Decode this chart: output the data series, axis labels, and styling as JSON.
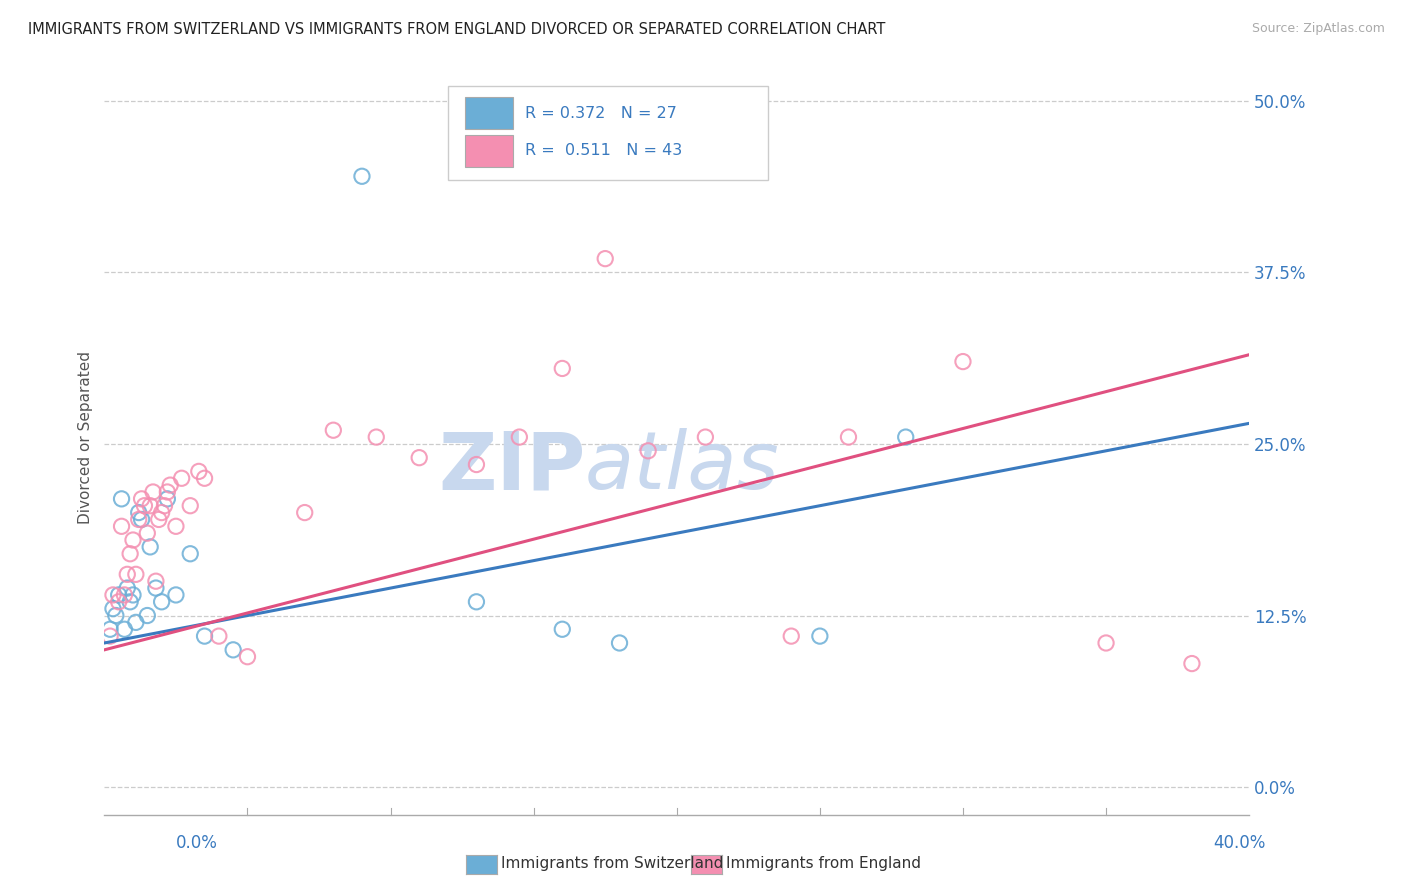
{
  "title": "IMMIGRANTS FROM SWITZERLAND VS IMMIGRANTS FROM ENGLAND DIVORCED OR SEPARATED CORRELATION CHART",
  "source": "Source: ZipAtlas.com",
  "ylabel": "Divorced or Separated",
  "ytick_vals": [
    0.0,
    12.5,
    25.0,
    37.5,
    50.0
  ],
  "xlim": [
    0.0,
    40.0
  ],
  "ylim": [
    -2.0,
    53.0
  ],
  "legend_label1": "Immigrants from Switzerland",
  "legend_label2": "Immigrants from England",
  "R1": 0.372,
  "N1": 27,
  "R2": 0.511,
  "N2": 43,
  "color1": "#6baed6",
  "color2": "#f48fb1",
  "trendline_color1": "#3a7abf",
  "trendline_color2": "#e05080",
  "watermark_zip": "ZIP",
  "watermark_atlas": "atlas",
  "watermark_color": "#c8d8ee",
  "background_color": "#ffffff",
  "scatter1_x": [
    0.2,
    0.3,
    0.4,
    0.5,
    0.6,
    0.7,
    0.8,
    0.9,
    1.0,
    1.1,
    1.2,
    1.3,
    1.5,
    1.6,
    1.8,
    2.0,
    2.2,
    2.5,
    3.0,
    3.5,
    4.5,
    9.0,
    13.0,
    16.0,
    18.0,
    25.0,
    28.0
  ],
  "scatter1_y": [
    11.5,
    13.0,
    12.5,
    14.0,
    21.0,
    11.5,
    14.5,
    13.5,
    14.0,
    12.0,
    20.0,
    19.5,
    12.5,
    17.5,
    14.5,
    13.5,
    21.0,
    14.0,
    17.0,
    11.0,
    10.0,
    44.5,
    13.5,
    11.5,
    10.5,
    11.0,
    25.5
  ],
  "scatter2_x": [
    0.2,
    0.3,
    0.5,
    0.6,
    0.7,
    0.8,
    0.9,
    1.0,
    1.1,
    1.2,
    1.3,
    1.4,
    1.5,
    1.6,
    1.7,
    1.8,
    1.9,
    2.0,
    2.1,
    2.2,
    2.3,
    2.5,
    2.7,
    3.0,
    3.3,
    3.5,
    4.0,
    5.0,
    7.0,
    8.0,
    9.5,
    11.0,
    13.0,
    14.5,
    16.0,
    17.5,
    19.0,
    21.0,
    24.0,
    26.0,
    30.0,
    35.0,
    38.0
  ],
  "scatter2_y": [
    11.0,
    14.0,
    13.5,
    19.0,
    14.0,
    15.5,
    17.0,
    18.0,
    15.5,
    19.5,
    21.0,
    20.5,
    18.5,
    20.5,
    21.5,
    15.0,
    19.5,
    20.0,
    20.5,
    21.5,
    22.0,
    19.0,
    22.5,
    20.5,
    23.0,
    22.5,
    11.0,
    9.5,
    20.0,
    26.0,
    25.5,
    24.0,
    23.5,
    25.5,
    30.5,
    38.5,
    24.5,
    25.5,
    11.0,
    25.5,
    31.0,
    10.5,
    9.0
  ],
  "trendline1_x0": 0.0,
  "trendline1_y0": 10.5,
  "trendline1_x1": 40.0,
  "trendline1_y1": 26.5,
  "trendline2_x0": 0.0,
  "trendline2_y0": 10.0,
  "trendline2_x1": 40.0,
  "trendline2_y1": 31.5
}
